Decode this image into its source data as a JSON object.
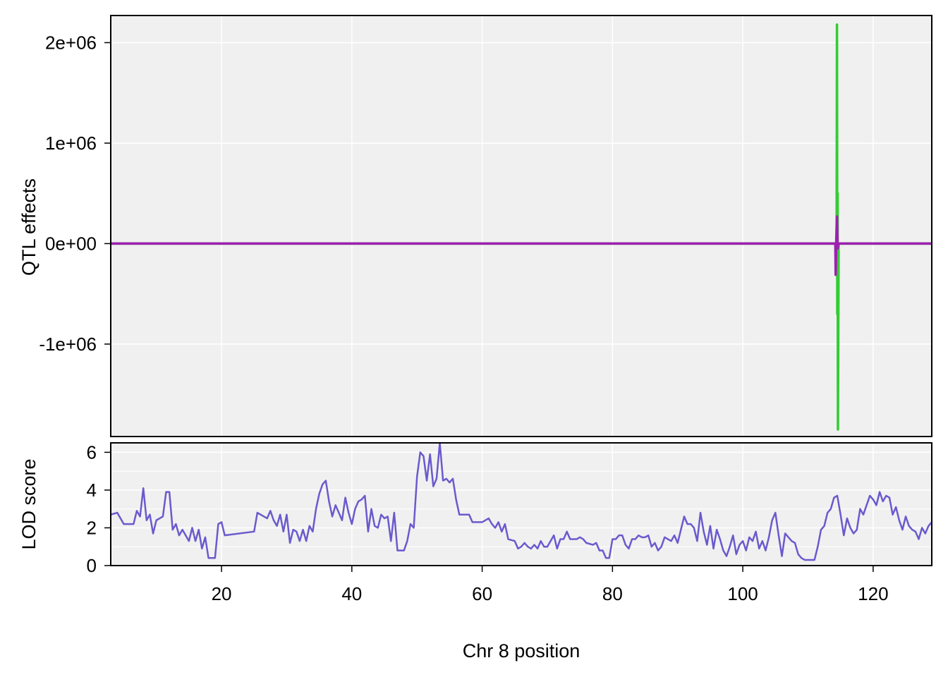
{
  "chart_data": [
    {
      "type": "line",
      "panel": "effects",
      "ylabel": "QTL effects",
      "xlim": [
        3,
        129
      ],
      "ylim": [
        -1920000,
        2270000
      ],
      "y_ticks": [
        {
          "value": -1000000,
          "label": "-1e+06"
        },
        {
          "value": 0,
          "label": "0e+00"
        },
        {
          "value": 1000000,
          "label": "1e+06"
        },
        {
          "value": 2000000,
          "label": "2e+06"
        }
      ],
      "grid": true,
      "series": [
        {
          "color": "#33cc33",
          "points": [
            [
              3,
              0
            ],
            [
              114.4,
              0
            ],
            [
              114.45,
              2180000
            ],
            [
              114.5,
              -700000
            ],
            [
              114.55,
              500000
            ],
            [
              114.6,
              -1850000
            ],
            [
              114.7,
              0
            ],
            [
              129,
              0
            ]
          ]
        },
        {
          "color": "#9e1fb0",
          "points": [
            [
              3,
              0
            ],
            [
              114.2,
              0
            ],
            [
              114.25,
              -310000
            ],
            [
              114.35,
              60000
            ],
            [
              114.45,
              270000
            ],
            [
              114.55,
              -50000
            ],
            [
              114.7,
              0
            ],
            [
              129,
              0
            ]
          ]
        }
      ]
    },
    {
      "type": "line",
      "panel": "lod",
      "ylabel": "LOD score",
      "xlabel": "Chr 8 position",
      "xlim": [
        3,
        129
      ],
      "ylim": [
        0,
        6.5
      ],
      "x_ticks": [
        20,
        40,
        60,
        80,
        100,
        120
      ],
      "y_ticks": [
        0,
        2,
        4,
        6
      ],
      "grid": true,
      "series": [
        {
          "color": "#6a5acd",
          "points": [
            [
              3,
              2.7
            ],
            [
              4,
              2.8
            ],
            [
              5,
              2.2
            ],
            [
              6.5,
              2.2
            ],
            [
              7,
              2.9
            ],
            [
              7.5,
              2.6
            ],
            [
              8,
              4.1
            ],
            [
              8.5,
              2.4
            ],
            [
              9,
              2.7
            ],
            [
              9.5,
              1.7
            ],
            [
              10,
              2.4
            ],
            [
              11,
              2.6
            ],
            [
              11.5,
              3.9
            ],
            [
              12,
              3.9
            ],
            [
              12.5,
              1.9
            ],
            [
              13,
              2.2
            ],
            [
              13.5,
              1.6
            ],
            [
              14,
              1.9
            ],
            [
              15,
              1.3
            ],
            [
              15.5,
              2.0
            ],
            [
              16,
              1.3
            ],
            [
              16.5,
              1.9
            ],
            [
              17,
              0.9
            ],
            [
              17.5,
              1.5
            ],
            [
              18,
              0.4
            ],
            [
              19,
              0.4
            ],
            [
              19.5,
              2.2
            ],
            [
              20,
              2.3
            ],
            [
              20.5,
              1.6
            ],
            [
              25,
              1.8
            ],
            [
              25.5,
              2.8
            ],
            [
              26,
              2.7
            ],
            [
              27,
              2.5
            ],
            [
              27.5,
              2.9
            ],
            [
              28,
              2.4
            ],
            [
              28.5,
              2.1
            ],
            [
              29,
              2.7
            ],
            [
              29.5,
              1.8
            ],
            [
              30,
              2.7
            ],
            [
              30.5,
              1.2
            ],
            [
              31,
              1.9
            ],
            [
              31.5,
              1.8
            ],
            [
              32,
              1.3
            ],
            [
              32.5,
              1.9
            ],
            [
              33,
              1.3
            ],
            [
              33.5,
              2.1
            ],
            [
              34,
              1.8
            ],
            [
              34.5,
              3.0
            ],
            [
              35,
              3.8
            ],
            [
              35.5,
              4.3
            ],
            [
              36,
              4.5
            ],
            [
              36.5,
              3.4
            ],
            [
              37,
              2.6
            ],
            [
              37.5,
              3.2
            ],
            [
              38,
              2.8
            ],
            [
              38.5,
              2.4
            ],
            [
              39,
              3.6
            ],
            [
              39.5,
              2.8
            ],
            [
              40,
              2.2
            ],
            [
              40.5,
              3.0
            ],
            [
              41,
              3.4
            ],
            [
              41.5,
              3.5
            ],
            [
              42,
              3.7
            ],
            [
              42.5,
              1.8
            ],
            [
              43,
              3.0
            ],
            [
              43.5,
              2.1
            ],
            [
              44,
              2.0
            ],
            [
              44.5,
              2.7
            ],
            [
              45,
              2.5
            ],
            [
              45.5,
              2.6
            ],
            [
              46,
              1.3
            ],
            [
              46.5,
              2.8
            ],
            [
              47,
              0.8
            ],
            [
              48,
              0.8
            ],
            [
              48.5,
              1.3
            ],
            [
              49,
              2.2
            ],
            [
              49.5,
              2.0
            ],
            [
              50,
              4.7
            ],
            [
              50.5,
              6.0
            ],
            [
              51,
              5.8
            ],
            [
              51.5,
              4.5
            ],
            [
              52,
              5.9
            ],
            [
              52.5,
              4.2
            ],
            [
              53,
              4.6
            ],
            [
              53.5,
              6.5
            ],
            [
              54,
              4.5
            ],
            [
              54.5,
              4.6
            ],
            [
              55,
              4.4
            ],
            [
              55.5,
              4.6
            ],
            [
              56,
              3.5
            ],
            [
              56.5,
              2.7
            ],
            [
              58,
              2.7
            ],
            [
              58.5,
              2.3
            ],
            [
              60,
              2.3
            ],
            [
              61,
              2.5
            ],
            [
              61.5,
              2.2
            ],
            [
              62,
              2.0
            ],
            [
              62.5,
              2.3
            ],
            [
              63,
              1.8
            ],
            [
              63.5,
              2.2
            ],
            [
              64,
              1.4
            ],
            [
              65,
              1.3
            ],
            [
              65.5,
              0.9
            ],
            [
              66,
              1.0
            ],
            [
              66.5,
              1.2
            ],
            [
              67,
              1.0
            ],
            [
              67.5,
              0.9
            ],
            [
              68,
              1.1
            ],
            [
              68.5,
              0.9
            ],
            [
              69,
              1.3
            ],
            [
              69.5,
              1.0
            ],
            [
              70,
              1.0
            ],
            [
              70.5,
              1.3
            ],
            [
              71,
              1.6
            ],
            [
              71.5,
              0.9
            ],
            [
              72,
              1.4
            ],
            [
              72.5,
              1.4
            ],
            [
              73,
              1.8
            ],
            [
              73.5,
              1.4
            ],
            [
              74,
              1.4
            ],
            [
              74.5,
              1.4
            ],
            [
              75,
              1.5
            ],
            [
              75.5,
              1.4
            ],
            [
              76,
              1.2
            ],
            [
              77,
              1.1
            ],
            [
              77.5,
              1.2
            ],
            [
              78,
              0.8
            ],
            [
              78.5,
              0.8
            ],
            [
              79,
              0.4
            ],
            [
              79.5,
              0.4
            ],
            [
              80,
              1.4
            ],
            [
              80.5,
              1.4
            ],
            [
              81,
              1.6
            ],
            [
              81.5,
              1.6
            ],
            [
              82,
              1.1
            ],
            [
              82.5,
              0.9
            ],
            [
              83,
              1.4
            ],
            [
              83.5,
              1.4
            ],
            [
              84,
              1.6
            ],
            [
              84.5,
              1.5
            ],
            [
              85,
              1.5
            ],
            [
              85.5,
              1.6
            ],
            [
              86,
              1.0
            ],
            [
              86.5,
              1.2
            ],
            [
              87,
              0.8
            ],
            [
              87.5,
              1.0
            ],
            [
              88,
              1.5
            ],
            [
              89,
              1.3
            ],
            [
              89.5,
              1.6
            ],
            [
              90,
              1.2
            ],
            [
              90.5,
              1.9
            ],
            [
              91,
              2.6
            ],
            [
              91.5,
              2.2
            ],
            [
              92,
              2.2
            ],
            [
              92.5,
              2.0
            ],
            [
              93,
              1.3
            ],
            [
              93.5,
              2.8
            ],
            [
              94,
              1.8
            ],
            [
              94.5,
              1.1
            ],
            [
              95,
              2.1
            ],
            [
              95.5,
              0.9
            ],
            [
              96,
              1.9
            ],
            [
              96.5,
              1.4
            ],
            [
              97,
              0.8
            ],
            [
              97.5,
              0.5
            ],
            [
              98,
              1.0
            ],
            [
              98.5,
              1.6
            ],
            [
              99,
              0.6
            ],
            [
              99.5,
              1.1
            ],
            [
              100,
              1.3
            ],
            [
              100.5,
              0.8
            ],
            [
              101,
              1.5
            ],
            [
              101.5,
              1.3
            ],
            [
              102,
              1.8
            ],
            [
              102.5,
              0.9
            ],
            [
              103,
              1.3
            ],
            [
              103.5,
              0.8
            ],
            [
              104,
              1.5
            ],
            [
              104.5,
              2.4
            ],
            [
              105,
              2.8
            ],
            [
              105.5,
              1.6
            ],
            [
              106,
              0.5
            ],
            [
              106.5,
              1.7
            ],
            [
              107,
              1.5
            ],
            [
              107.5,
              1.3
            ],
            [
              108,
              1.2
            ],
            [
              108.5,
              0.6
            ],
            [
              109,
              0.4
            ],
            [
              109.5,
              0.3
            ],
            [
              110,
              0.3
            ],
            [
              110.5,
              0.3
            ],
            [
              111,
              0.3
            ],
            [
              111.5,
              1.0
            ],
            [
              112,
              1.9
            ],
            [
              112.5,
              2.1
            ],
            [
              113,
              2.8
            ],
            [
              113.5,
              3.0
            ],
            [
              114,
              3.6
            ],
            [
              114.5,
              3.7
            ],
            [
              115,
              2.7
            ],
            [
              115.5,
              1.6
            ],
            [
              116,
              2.5
            ],
            [
              116.5,
              2.0
            ],
            [
              117,
              1.7
            ],
            [
              117.5,
              1.9
            ],
            [
              118,
              3.0
            ],
            [
              118.5,
              2.7
            ],
            [
              119,
              3.2
            ],
            [
              119.5,
              3.7
            ],
            [
              120,
              3.5
            ],
            [
              120.5,
              3.2
            ],
            [
              121,
              3.9
            ],
            [
              121.5,
              3.4
            ],
            [
              122,
              3.7
            ],
            [
              122.5,
              3.6
            ],
            [
              123,
              2.7
            ],
            [
              123.5,
              3.1
            ],
            [
              124,
              2.4
            ],
            [
              124.5,
              1.9
            ],
            [
              125,
              2.6
            ],
            [
              125.5,
              2.1
            ],
            [
              126,
              1.9
            ],
            [
              126.5,
              1.8
            ],
            [
              127,
              1.4
            ],
            [
              127.5,
              2.0
            ],
            [
              128,
              1.7
            ],
            [
              128.5,
              2.1
            ],
            [
              129,
              2.3
            ]
          ]
        }
      ]
    }
  ]
}
